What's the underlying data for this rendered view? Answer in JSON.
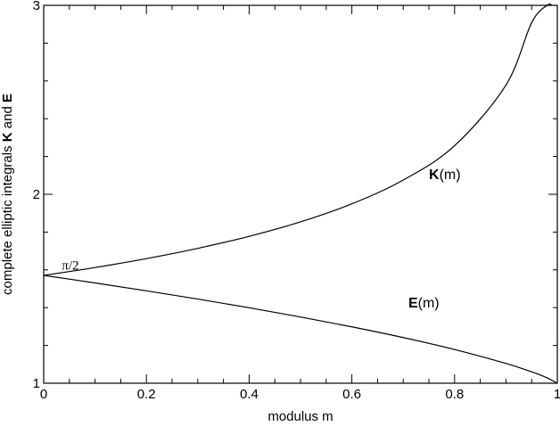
{
  "chart_data": {
    "type": "line",
    "title": "",
    "xlabel": "modulus m",
    "ylabel": {
      "prefix": "complete elliptic integrals ",
      "k": "K",
      "mid": " and ",
      "e": "E"
    },
    "xlim": [
      0,
      1
    ],
    "ylim": [
      1,
      3
    ],
    "x_ticks": [
      0,
      0.2,
      0.4,
      0.6,
      0.8,
      1
    ],
    "x_tick_labels": [
      "0",
      "0.2",
      "0.4",
      "0.6",
      "0.8",
      "1"
    ],
    "y_ticks": [
      1,
      2,
      3
    ],
    "y_tick_labels": [
      "1",
      "2",
      "3"
    ],
    "x_minor_step": 0.05,
    "y_minor_step": 0.2,
    "grid": false,
    "annotations": [
      {
        "text": "π/2",
        "x": 0.03,
        "y": 1.625
      }
    ],
    "series": [
      {
        "name_bold": "K",
        "name_rest": "(m)",
        "label_x": 0.75,
        "label_y": 2.08,
        "x": [
          0,
          0.1,
          0.2,
          0.3,
          0.4,
          0.5,
          0.6,
          0.7,
          0.8,
          0.9,
          0.95,
          0.98,
          0.99
        ],
        "values": [
          1.5708,
          1.6124,
          1.6596,
          1.7139,
          1.7775,
          1.8541,
          1.9496,
          2.0754,
          2.2572,
          2.5781,
          2.9083,
          3.0,
          3.0
        ]
      },
      {
        "name_bold": "E",
        "name_rest": "(m)",
        "label_x": 0.71,
        "label_y": 1.4,
        "x": [
          0,
          0.1,
          0.2,
          0.3,
          0.4,
          0.5,
          0.6,
          0.7,
          0.8,
          0.9,
          0.95,
          0.98,
          1
        ],
        "values": [
          1.5708,
          1.5308,
          1.489,
          1.4454,
          1.3994,
          1.3506,
          1.2984,
          1.2417,
          1.1785,
          1.1048,
          1.0605,
          1.0286,
          1.0
        ]
      }
    ]
  }
}
